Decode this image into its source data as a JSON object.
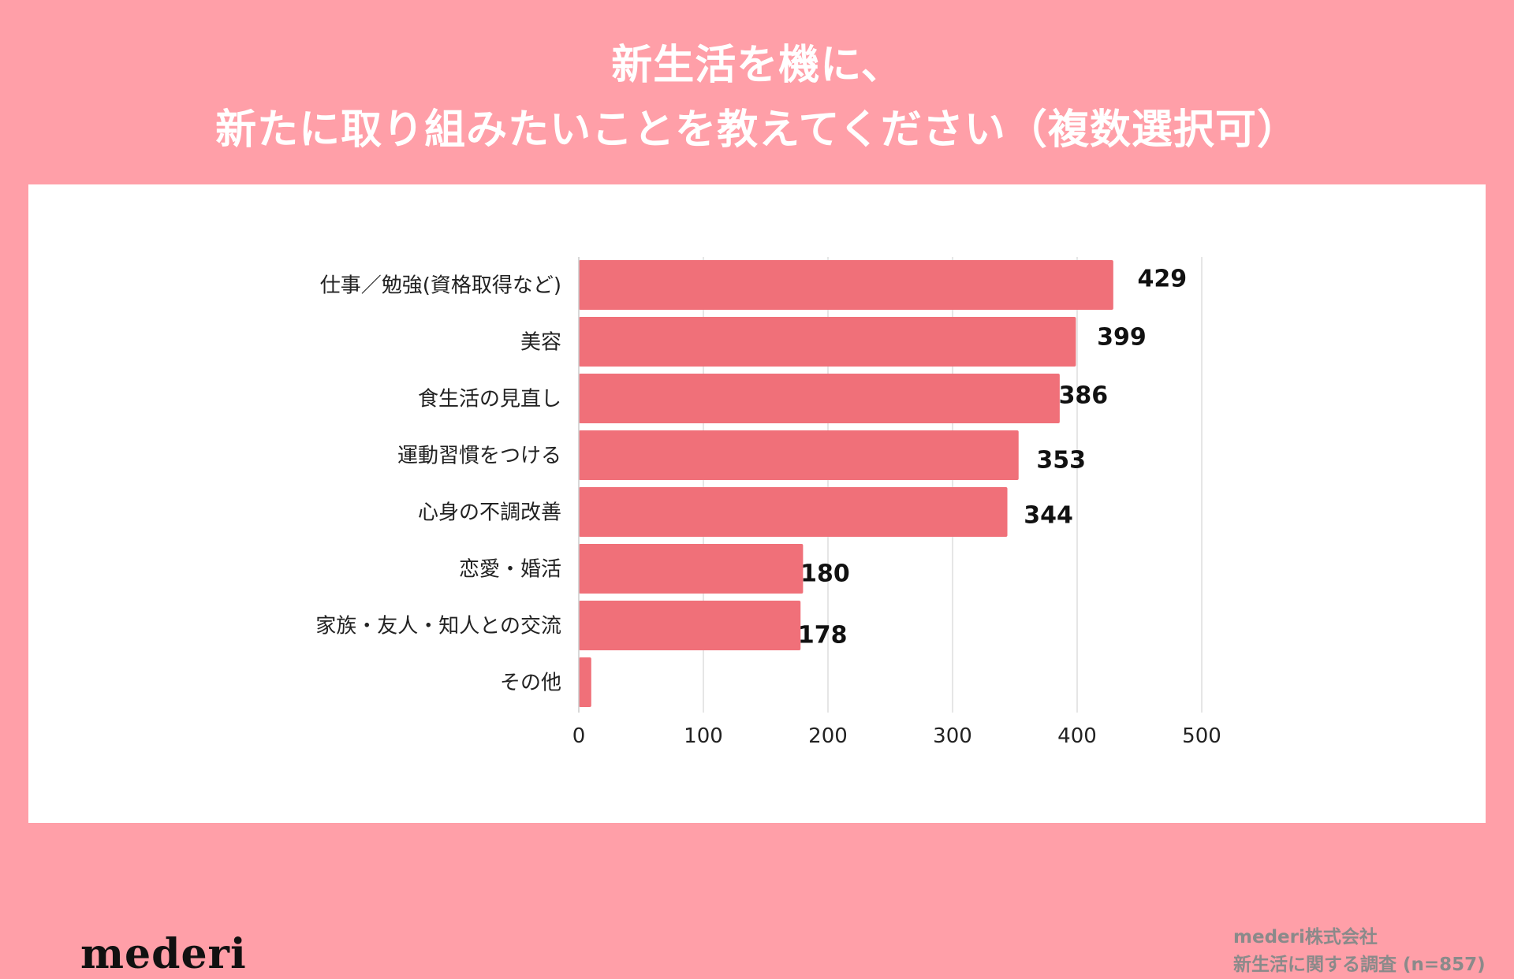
{
  "header": {
    "title_line1": "新生活を機に、",
    "title_line2": "新たに取り組みたいことを教えてください（複数選択可）"
  },
  "footer": {
    "logo_text": "mederi",
    "source_line1": "mederi株式会社",
    "source_line2": "新生活に関する調査 (n=857)"
  },
  "colors": {
    "background": "#ff9fa8",
    "bar": "#f07079",
    "panel": "#ffffff",
    "title_text": "#ffffff"
  },
  "chart_data": {
    "type": "bar",
    "orientation": "horizontal",
    "categories": [
      "仕事／勉強(資格取得など)",
      "美容",
      "食生活の見直し",
      "運動習慣をつける",
      "心身の不調改善",
      "恋愛・婚活",
      "家族・友人・知人との交流",
      "その他"
    ],
    "values": [
      429,
      399,
      386,
      353,
      344,
      180,
      178,
      10
    ],
    "value_labels": [
      "429",
      "399",
      "386",
      "353",
      "344",
      "180",
      "178",
      ""
    ],
    "xlim": [
      0,
      500
    ],
    "xticks": [
      0,
      100,
      200,
      300,
      400,
      500
    ],
    "xtick_labels": [
      "0",
      "100",
      "200",
      "300",
      "400",
      "500"
    ],
    "grid": true,
    "xlabel": "",
    "ylabel": ""
  }
}
